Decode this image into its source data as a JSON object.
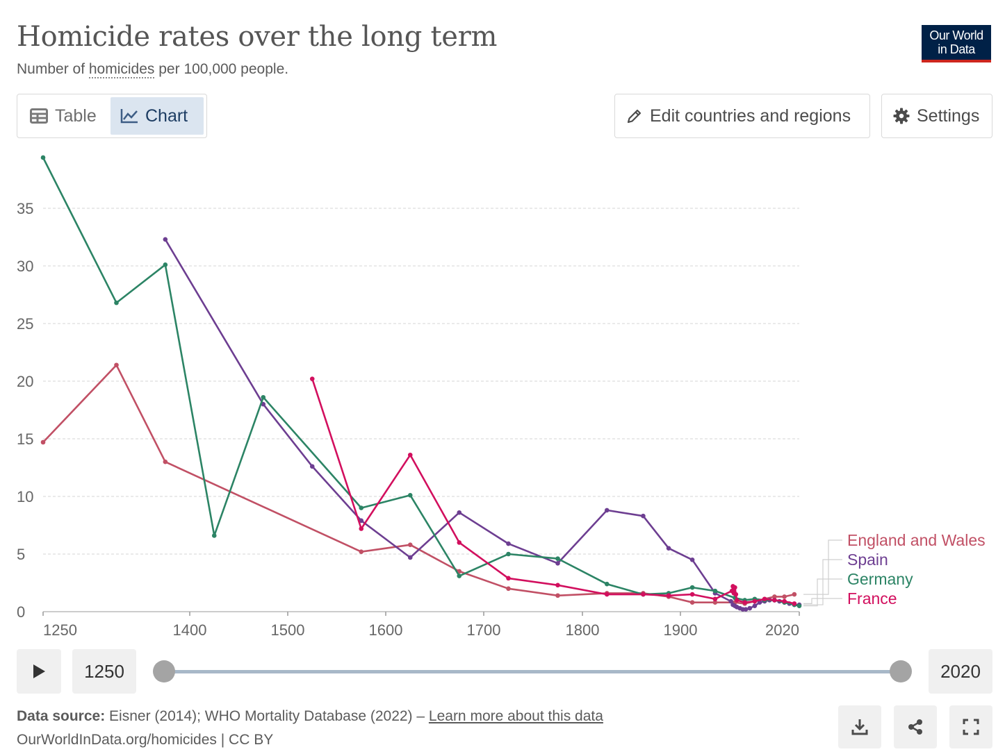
{
  "header": {
    "title": "Homicide rates over the long term",
    "subtitle_prefix": "Number of ",
    "subtitle_term": "homicides",
    "subtitle_suffix": " per 100,000 people.",
    "logo_line1": "Our World",
    "logo_line2": "in Data"
  },
  "tabs": {
    "table_label": "Table",
    "chart_label": "Chart",
    "active": "Chart"
  },
  "controls": {
    "edit_label": "Edit countries and regions",
    "settings_label": "Settings"
  },
  "timeline": {
    "start_year": "1250",
    "end_year": "2020"
  },
  "footer": {
    "source_label": "Data source:",
    "source_text": " Eisner (2014); WHO Mortality Database (2022) – ",
    "learn_more": "Learn more about this data",
    "url_text": "OurWorldInData.org/homicides | CC BY"
  },
  "chart_data": {
    "type": "line",
    "title": "",
    "xlabel": "",
    "ylabel": "",
    "xlim": [
      1250,
      2020
    ],
    "ylim": [
      0,
      40
    ],
    "xticks": [
      1250,
      1400,
      1500,
      1600,
      1700,
      1800,
      1900,
      2020
    ],
    "yticks": [
      0,
      5,
      10,
      15,
      20,
      25,
      30,
      35
    ],
    "grid": "horizontal",
    "legend": "right",
    "series": [
      {
        "name": "England and Wales",
        "color": "#c15065",
        "x": [
          1250,
          1325,
          1375,
          1575,
          1625,
          1675,
          1725,
          1775,
          1825,
          1862,
          1888,
          1912,
          1935,
          1955,
          1965,
          1975,
          1985,
          1995,
          2005,
          2015
        ],
        "y": [
          14.7,
          21.4,
          13.0,
          5.2,
          5.8,
          3.5,
          2.0,
          1.4,
          1.6,
          1.6,
          1.3,
          0.8,
          0.8,
          0.8,
          0.7,
          0.9,
          1.1,
          1.3,
          1.3,
          1.5
        ]
      },
      {
        "name": "Spain",
        "color": "#6d3e91",
        "x": [
          1375,
          1475,
          1525,
          1575,
          1625,
          1675,
          1725,
          1775,
          1825,
          1862,
          1888,
          1912,
          1935,
          1951,
          1953,
          1955,
          1957,
          1960,
          1963,
          1966,
          1970,
          1975,
          1980,
          1985,
          1990,
          1995,
          2000,
          2005,
          2010,
          2015,
          2020
        ],
        "y": [
          32.3,
          18.0,
          12.6,
          7.9,
          4.7,
          8.6,
          5.9,
          4.2,
          8.8,
          8.3,
          5.5,
          4.5,
          1.6,
          0.9,
          0.6,
          0.5,
          0.4,
          0.3,
          0.2,
          0.2,
          0.3,
          0.5,
          0.8,
          0.9,
          1.0,
          1.0,
          0.9,
          0.8,
          0.7,
          0.6,
          0.6
        ]
      },
      {
        "name": "Germany",
        "color": "#2c8465",
        "x": [
          1250,
          1325,
          1375,
          1425,
          1475,
          1575,
          1625,
          1675,
          1725,
          1775,
          1825,
          1862,
          1888,
          1912,
          1935,
          1955,
          1965,
          1975,
          1985,
          1995,
          2005,
          2015,
          2020
        ],
        "y": [
          39.4,
          26.8,
          30.1,
          6.6,
          18.6,
          9.0,
          10.1,
          3.1,
          5.0,
          4.6,
          2.4,
          1.5,
          1.6,
          2.1,
          1.8,
          1.2,
          1.0,
          1.1,
          1.0,
          1.0,
          0.8,
          0.6,
          0.5
        ]
      },
      {
        "name": "France",
        "color": "#d20f5e",
        "x": [
          1525,
          1575,
          1625,
          1675,
          1725,
          1775,
          1825,
          1862,
          1888,
          1912,
          1935,
          1952,
          1953,
          1954,
          1955,
          1956,
          1957,
          1965,
          1975,
          1985,
          1995,
          2005,
          2015
        ],
        "y": [
          20.2,
          7.2,
          13.6,
          6.0,
          2.9,
          2.3,
          1.5,
          1.5,
          1.4,
          1.5,
          1.1,
          1.8,
          2.2,
          1.6,
          2.1,
          1.5,
          1.0,
          0.8,
          0.9,
          1.1,
          1.0,
          0.9,
          0.7
        ]
      }
    ]
  }
}
